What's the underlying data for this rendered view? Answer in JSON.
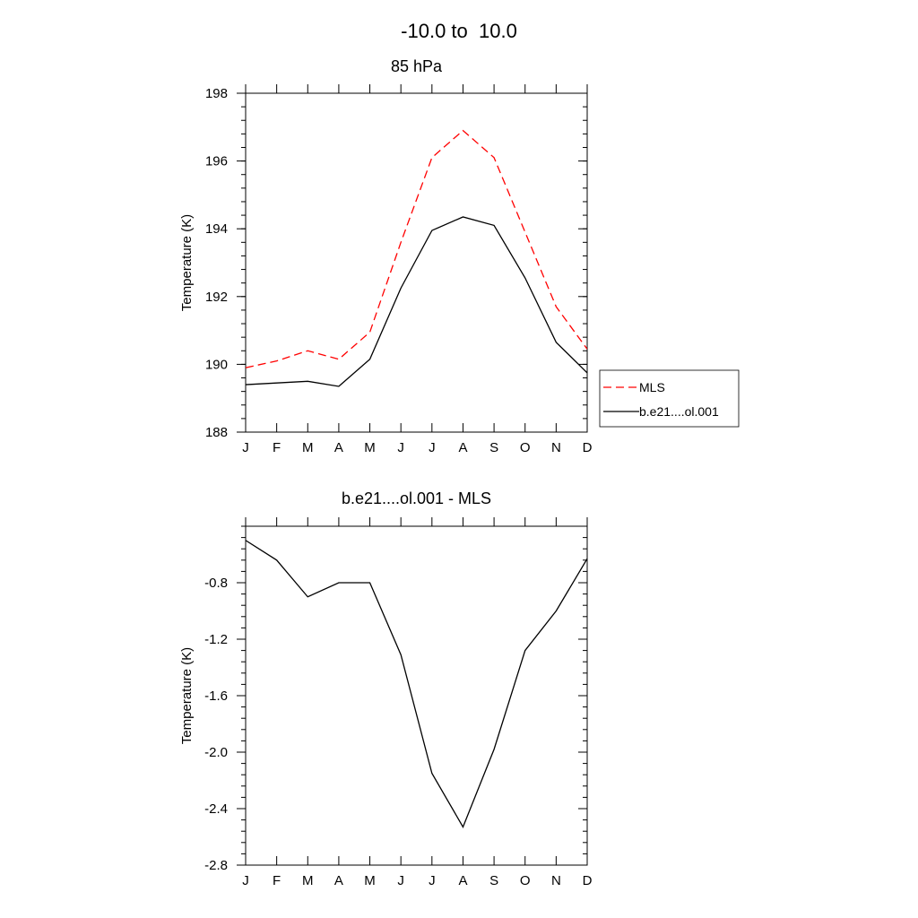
{
  "figure": {
    "title": "-10.0 to  10.0"
  },
  "chart_data": [
    {
      "type": "line",
      "title": "85 hPa",
      "xlabel": "",
      "ylabel": "Temperature (K)",
      "categories": [
        "J",
        "F",
        "M",
        "A",
        "M",
        "J",
        "J",
        "A",
        "S",
        "O",
        "N",
        "D"
      ],
      "ylim": [
        188,
        198
      ],
      "yticks": [
        188,
        190,
        192,
        194,
        196,
        198
      ],
      "grid": false,
      "legend_position": "right",
      "series": [
        {
          "name": "MLS",
          "color": "#ff0000",
          "dashed": true,
          "values": [
            189.9,
            190.1,
            190.4,
            190.15,
            190.95,
            193.6,
            196.1,
            196.9,
            196.1,
            193.9,
            191.7,
            190.45
          ]
        },
        {
          "name": "b.e21....ol.001",
          "color": "#000000",
          "dashed": false,
          "values": [
            189.4,
            189.45,
            189.5,
            189.35,
            190.15,
            192.25,
            193.95,
            194.35,
            194.1,
            192.55,
            190.65,
            189.75
          ]
        }
      ]
    },
    {
      "type": "line",
      "title": "b.e21....ol.001 - MLS",
      "xlabel": "",
      "ylabel": "Temperature (K)",
      "categories": [
        "J",
        "F",
        "M",
        "A",
        "M",
        "J",
        "J",
        "A",
        "S",
        "O",
        "N",
        "D"
      ],
      "ylim": [
        -2.8,
        -0.4
      ],
      "yticks": [
        -2.8,
        -2.4,
        -2.0,
        -1.6,
        -1.2,
        -0.8
      ],
      "ytick_labels": [
        "-2.8",
        "-2.4",
        "-2.0",
        "-1.6",
        "-1.2",
        "-0.8"
      ],
      "grid": false,
      "series": [
        {
          "color": "#000000",
          "dashed": false,
          "values": [
            -0.5,
            -0.64,
            -0.9,
            -0.8,
            -0.8,
            -1.31,
            -2.15,
            -2.53,
            -1.98,
            -1.28,
            -1.0,
            -0.63
          ]
        }
      ]
    }
  ]
}
